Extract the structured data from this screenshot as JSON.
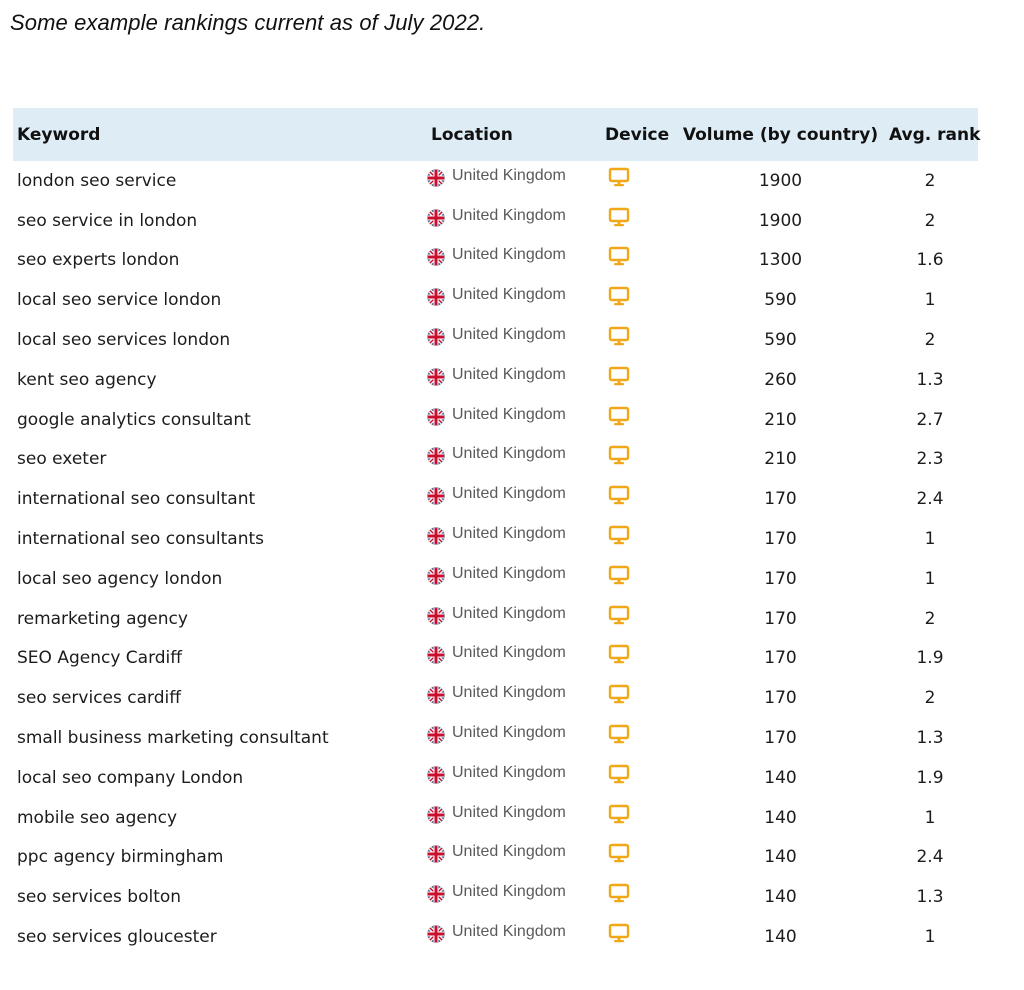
{
  "caption": "Some example rankings current as of July 2022.",
  "table": {
    "headers": {
      "keyword": "Keyword",
      "location": "Location",
      "device": "Device",
      "volume": "Volume (by country)",
      "rank": "Avg. rank"
    },
    "header_bg": "#deedf5",
    "device_icon_color": "#f0a818",
    "rows": [
      {
        "keyword": "london seo service",
        "location": "United Kingdom",
        "device_icon": "desktop-monitor-icon",
        "volume": "1900",
        "rank": "2"
      },
      {
        "keyword": "seo service in london",
        "location": "United Kingdom",
        "device_icon": "desktop-monitor-icon",
        "volume": "1900",
        "rank": "2"
      },
      {
        "keyword": "seo experts london",
        "location": "United Kingdom",
        "device_icon": "desktop-monitor-icon",
        "volume": "1300",
        "rank": "1.6"
      },
      {
        "keyword": "local seo service london",
        "location": "United Kingdom",
        "device_icon": "desktop-monitor-icon",
        "volume": "590",
        "rank": "1"
      },
      {
        "keyword": "local seo services london",
        "location": "United Kingdom",
        "device_icon": "desktop-monitor-icon",
        "volume": "590",
        "rank": "2"
      },
      {
        "keyword": "kent seo agency",
        "location": "United Kingdom",
        "device_icon": "desktop-monitor-icon",
        "volume": "260",
        "rank": "1.3"
      },
      {
        "keyword": "google analytics consultant",
        "location": "United Kingdom",
        "device_icon": "desktop-monitor-icon",
        "volume": "210",
        "rank": "2.7"
      },
      {
        "keyword": "seo exeter",
        "location": "United Kingdom",
        "device_icon": "desktop-monitor-icon",
        "volume": "210",
        "rank": "2.3"
      },
      {
        "keyword": "international seo consultant",
        "location": "United Kingdom",
        "device_icon": "desktop-monitor-icon",
        "volume": "170",
        "rank": "2.4"
      },
      {
        "keyword": "international seo consultants",
        "location": "United Kingdom",
        "device_icon": "desktop-monitor-icon",
        "volume": "170",
        "rank": "1"
      },
      {
        "keyword": "local seo agency london",
        "location": "United Kingdom",
        "device_icon": "desktop-monitor-icon",
        "volume": "170",
        "rank": "1"
      },
      {
        "keyword": "remarketing agency",
        "location": "United Kingdom",
        "device_icon": "desktop-monitor-icon",
        "volume": "170",
        "rank": "2"
      },
      {
        "keyword": "SEO Agency Cardiff",
        "location": "United Kingdom",
        "device_icon": "desktop-monitor-icon",
        "volume": "170",
        "rank": "1.9"
      },
      {
        "keyword": "seo services cardiff",
        "location": "United Kingdom",
        "device_icon": "desktop-monitor-icon",
        "volume": "170",
        "rank": "2"
      },
      {
        "keyword": "small business marketing consultant",
        "location": "United Kingdom",
        "device_icon": "desktop-monitor-icon",
        "volume": "170",
        "rank": "1.3"
      },
      {
        "keyword": "local seo company London",
        "location": "United Kingdom",
        "device_icon": "desktop-monitor-icon",
        "volume": "140",
        "rank": "1.9"
      },
      {
        "keyword": "mobile seo agency",
        "location": "United Kingdom",
        "device_icon": "desktop-monitor-icon",
        "volume": "140",
        "rank": "1"
      },
      {
        "keyword": "ppc agency birmingham",
        "location": "United Kingdom",
        "device_icon": "desktop-monitor-icon",
        "volume": "140",
        "rank": "2.4"
      },
      {
        "keyword": "seo services bolton",
        "location": "United Kingdom",
        "device_icon": "desktop-monitor-icon",
        "volume": "140",
        "rank": "1.3"
      },
      {
        "keyword": "seo services gloucester",
        "location": "United Kingdom",
        "device_icon": "desktop-monitor-icon",
        "volume": "140",
        "rank": "1"
      }
    ]
  }
}
